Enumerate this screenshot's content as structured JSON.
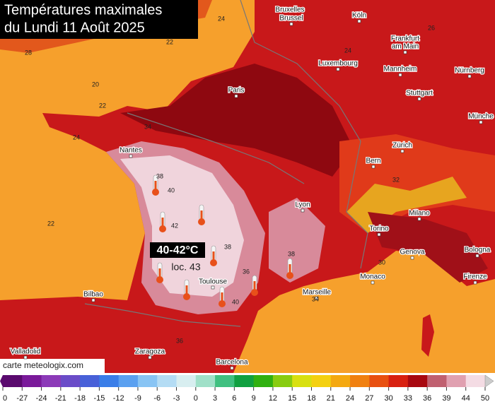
{
  "title_lines": [
    "Températures maximales",
    "du Lundi 11 Août 2025"
  ],
  "highlight": {
    "range": "40-42°C",
    "local": "loc. 43"
  },
  "credit": "carte meteologix.com",
  "cities": [
    "Bruxelles",
    "Brussel",
    "Köln",
    "Luxembourg",
    "Frankfurt",
    "am Main",
    "Mannheim",
    "Nürnberg",
    "Stuttgart",
    "Münche",
    "Paris",
    "Nantes",
    "Zürich",
    "Bern",
    "Lyon",
    "Milano",
    "Torino",
    "Genova",
    "Bologna",
    "Monaco",
    "Marseille",
    "Toulouse",
    "Bilbao",
    "Firenze",
    "Valladolid",
    "Zaragoza",
    "Barcelona"
  ],
  "contour_labels": [
    24,
    28,
    20,
    22,
    24,
    22,
    34,
    38,
    40,
    42,
    38,
    36,
    40,
    38,
    34,
    36,
    24,
    22,
    26,
    32,
    30
  ],
  "legend": {
    "ticks": [
      "0",
      -27,
      -24,
      -21,
      -18,
      -15,
      -12,
      -9,
      -6,
      -3,
      0,
      3,
      6,
      9,
      12,
      15,
      18,
      21,
      24,
      27,
      30,
      33,
      36,
      39,
      44,
      50
    ],
    "colors": [
      "#5a0a6e",
      "#7a1a9a",
      "#8c3ab8",
      "#6a4cc8",
      "#4860d8",
      "#3a7ee8",
      "#5aa0f0",
      "#88c4f4",
      "#b4dcf4",
      "#d8eef0",
      "#a0e0c8",
      "#40c080",
      "#10a040",
      "#30b010",
      "#88cc10",
      "#d8e010",
      "#f4d010",
      "#f4a810",
      "#f08010",
      "#e85010",
      "#d82010",
      "#a80810",
      "#c06070",
      "#e0a0b0",
      "#f4dce4"
    ]
  }
}
